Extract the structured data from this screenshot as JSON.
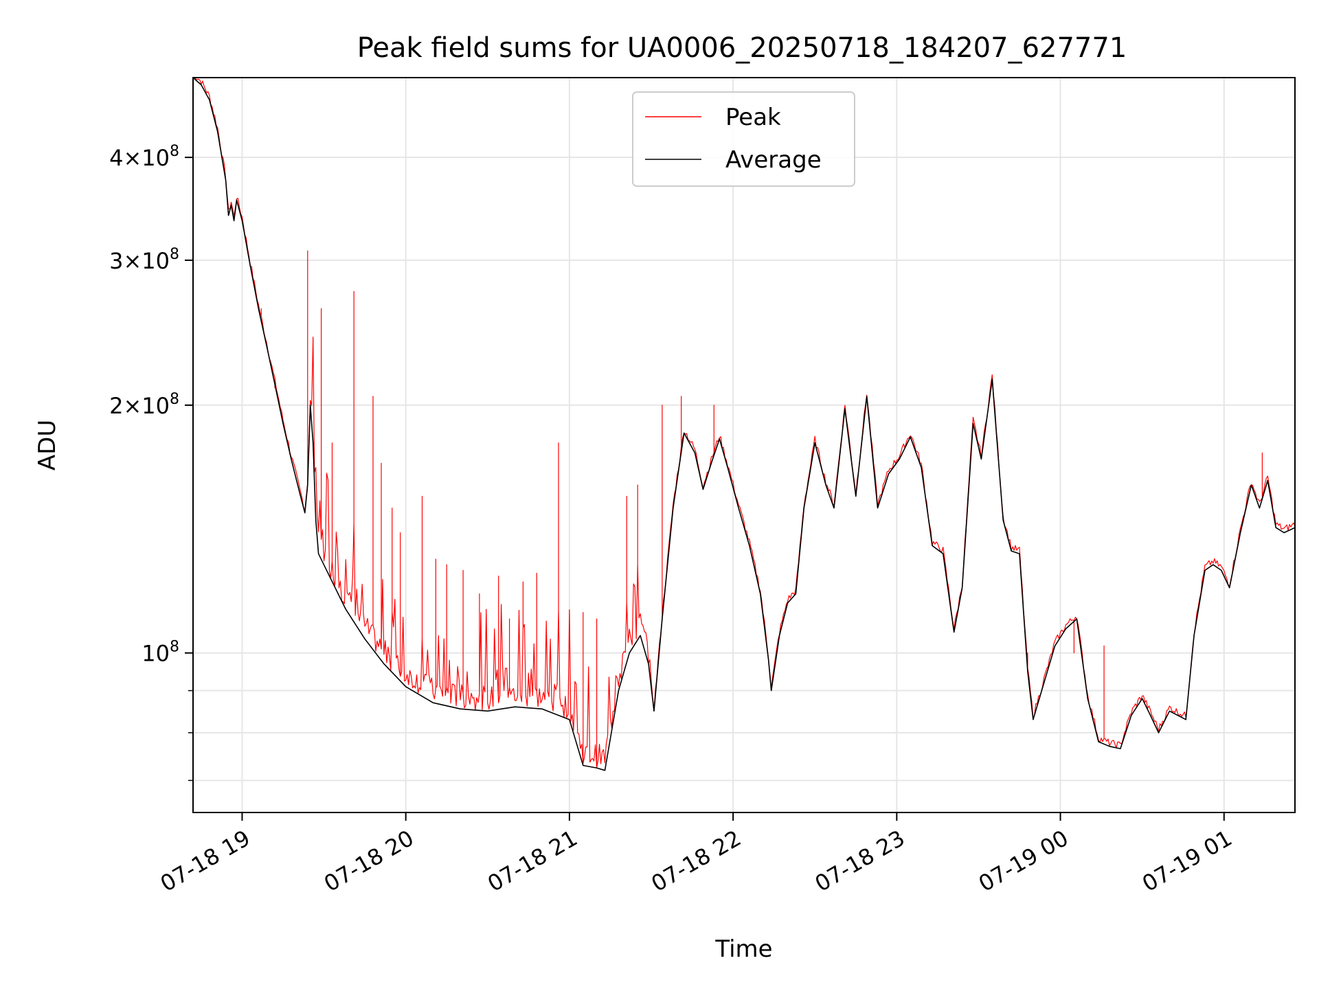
{
  "chart_data": {
    "type": "line",
    "title": "Peak field sums for UA0006_20250718_184207_627771",
    "xlabel": "Time",
    "ylabel": "ADU",
    "y_scale": "log",
    "grid": true,
    "legend_position": "top-center",
    "xlim": [
      "2025-07-18 18:42",
      "2025-07-19 01:26"
    ],
    "ylim": [
      64000000,
      500000000
    ],
    "x_ticks": [
      {
        "value": "2025-07-18 19:00",
        "label": "07-18 19"
      },
      {
        "value": "2025-07-18 20:00",
        "label": "07-18 20"
      },
      {
        "value": "2025-07-18 21:00",
        "label": "07-18 21"
      },
      {
        "value": "2025-07-18 22:00",
        "label": "07-18 22"
      },
      {
        "value": "2025-07-18 23:00",
        "label": "07-18 23"
      },
      {
        "value": "2025-07-19 00:00",
        "label": "07-19 00"
      },
      {
        "value": "2025-07-19 01:00",
        "label": "07-19 01"
      }
    ],
    "y_ticks": [
      {
        "value": 100000000,
        "mantissa": "",
        "exponent": "8",
        "label": "10^8"
      },
      {
        "value": 200000000,
        "mantissa": "2",
        "exponent": "8",
        "label": "2×10^8"
      },
      {
        "value": 300000000,
        "mantissa": "3",
        "exponent": "8",
        "label": "3×10^8"
      },
      {
        "value": 400000000,
        "mantissa": "4",
        "exponent": "8",
        "label": "4×10^8"
      }
    ],
    "y_minor_ticks": [
      70000000,
      80000000,
      90000000
    ],
    "series": [
      {
        "name": "Peak",
        "color": "#ff0000",
        "role": "peak"
      },
      {
        "name": "Average",
        "color": "#000000",
        "role": "average"
      }
    ],
    "average_points": [
      [
        "2025-07-18 18:42",
        500000000
      ],
      [
        "2025-07-18 18:45",
        490000000
      ],
      [
        "2025-07-18 18:48",
        470000000
      ],
      [
        "2025-07-18 18:51",
        430000000
      ],
      [
        "2025-07-18 18:54",
        375000000
      ],
      [
        "2025-07-18 18:55",
        340000000
      ],
      [
        "2025-07-18 18:56",
        350000000
      ],
      [
        "2025-07-18 18:57",
        335000000
      ],
      [
        "2025-07-18 18:58",
        355000000
      ],
      [
        "2025-07-18 19:00",
        335000000
      ],
      [
        "2025-07-18 19:03",
        295000000
      ],
      [
        "2025-07-18 19:06",
        262000000
      ],
      [
        "2025-07-18 19:09",
        236000000
      ],
      [
        "2025-07-18 19:12",
        212000000
      ],
      [
        "2025-07-18 19:15",
        190000000
      ],
      [
        "2025-07-18 19:18",
        172000000
      ],
      [
        "2025-07-18 19:21",
        157000000
      ],
      [
        "2025-07-18 19:23",
        148000000
      ],
      [
        "2025-07-18 19:24",
        160000000
      ],
      [
        "2025-07-18 19:25",
        200000000
      ],
      [
        "2025-07-18 19:26",
        180000000
      ],
      [
        "2025-07-18 19:27",
        145000000
      ],
      [
        "2025-07-18 19:28",
        132000000
      ],
      [
        "2025-07-18 19:32",
        124000000
      ],
      [
        "2025-07-18 19:38",
        113000000
      ],
      [
        "2025-07-18 19:45",
        104000000
      ],
      [
        "2025-07-18 19:52",
        97000000
      ],
      [
        "2025-07-18 20:00",
        91000000
      ],
      [
        "2025-07-18 20:10",
        87000000
      ],
      [
        "2025-07-18 20:20",
        85500000
      ],
      [
        "2025-07-18 20:30",
        85000000
      ],
      [
        "2025-07-18 20:40",
        86000000
      ],
      [
        "2025-07-18 20:50",
        85500000
      ],
      [
        "2025-07-18 21:00",
        83000000
      ],
      [
        "2025-07-18 21:05",
        73000000
      ],
      [
        "2025-07-18 21:10",
        72500000
      ],
      [
        "2025-07-18 21:13",
        72000000
      ],
      [
        "2025-07-18 21:18",
        90000000
      ],
      [
        "2025-07-18 21:22",
        100000000
      ],
      [
        "2025-07-18 21:26",
        105000000
      ],
      [
        "2025-07-18 21:29",
        97000000
      ],
      [
        "2025-07-18 21:31",
        85000000
      ],
      [
        "2025-07-18 21:34",
        110000000
      ],
      [
        "2025-07-18 21:38",
        150000000
      ],
      [
        "2025-07-18 21:42",
        185000000
      ],
      [
        "2025-07-18 21:46",
        175000000
      ],
      [
        "2025-07-18 21:49",
        158000000
      ],
      [
        "2025-07-18 21:52",
        170000000
      ],
      [
        "2025-07-18 21:55",
        182000000
      ],
      [
        "2025-07-18 21:58",
        168000000
      ],
      [
        "2025-07-18 22:02",
        150000000
      ],
      [
        "2025-07-18 22:06",
        135000000
      ],
      [
        "2025-07-18 22:10",
        118000000
      ],
      [
        "2025-07-18 22:13",
        98000000
      ],
      [
        "2025-07-18 22:14",
        90000000
      ],
      [
        "2025-07-18 22:17",
        105000000
      ],
      [
        "2025-07-18 22:20",
        115000000
      ],
      [
        "2025-07-18 22:23",
        118000000
      ],
      [
        "2025-07-18 22:26",
        150000000
      ],
      [
        "2025-07-18 22:30",
        180000000
      ],
      [
        "2025-07-18 22:34",
        160000000
      ],
      [
        "2025-07-18 22:37",
        150000000
      ],
      [
        "2025-07-18 22:41",
        198000000
      ],
      [
        "2025-07-18 22:45",
        155000000
      ],
      [
        "2025-07-18 22:49",
        205000000
      ],
      [
        "2025-07-18 22:53",
        150000000
      ],
      [
        "2025-07-18 22:57",
        165000000
      ],
      [
        "2025-07-18 23:01",
        172000000
      ],
      [
        "2025-07-18 23:05",
        183000000
      ],
      [
        "2025-07-18 23:09",
        168000000
      ],
      [
        "2025-07-18 23:13",
        135000000
      ],
      [
        "2025-07-18 23:17",
        132000000
      ],
      [
        "2025-07-18 23:20",
        112000000
      ],
      [
        "2025-07-18 23:21",
        106000000
      ],
      [
        "2025-07-18 23:24",
        120000000
      ],
      [
        "2025-07-18 23:28",
        190000000
      ],
      [
        "2025-07-18 23:31",
        172000000
      ],
      [
        "2025-07-18 23:35",
        215000000
      ],
      [
        "2025-07-18 23:39",
        145000000
      ],
      [
        "2025-07-18 23:42",
        133000000
      ],
      [
        "2025-07-18 23:45",
        132000000
      ],
      [
        "2025-07-18 23:48",
        95000000
      ],
      [
        "2025-07-18 23:50",
        83000000
      ],
      [
        "2025-07-18 23:54",
        92000000
      ],
      [
        "2025-07-18 23:58",
        102000000
      ],
      [
        "2025-07-19 00:02",
        107000000
      ],
      [
        "2025-07-19 00:06",
        110000000
      ],
      [
        "2025-07-19 00:10",
        88000000
      ],
      [
        "2025-07-19 00:14",
        78000000
      ],
      [
        "2025-07-19 00:18",
        77000000
      ],
      [
        "2025-07-19 00:22",
        76500000
      ],
      [
        "2025-07-19 00:26",
        84000000
      ],
      [
        "2025-07-19 00:30",
        88000000
      ],
      [
        "2025-07-19 00:33",
        84000000
      ],
      [
        "2025-07-19 00:36",
        80000000
      ],
      [
        "2025-07-19 00:40",
        85000000
      ],
      [
        "2025-07-19 00:43",
        84000000
      ],
      [
        "2025-07-19 00:46",
        83000000
      ],
      [
        "2025-07-19 00:49",
        105000000
      ],
      [
        "2025-07-19 00:53",
        126000000
      ],
      [
        "2025-07-19 00:56",
        128000000
      ],
      [
        "2025-07-19 00:59",
        126000000
      ],
      [
        "2025-07-19 01:02",
        120000000
      ],
      [
        "2025-07-19 01:06",
        140000000
      ],
      [
        "2025-07-19 01:10",
        160000000
      ],
      [
        "2025-07-19 01:13",
        150000000
      ],
      [
        "2025-07-19 01:16",
        162000000
      ],
      [
        "2025-07-19 01:19",
        142000000
      ],
      [
        "2025-07-19 01:22",
        140000000
      ],
      [
        "2025-07-19 01:26",
        142000000
      ]
    ],
    "peak_spikes": [
      [
        "2025-07-18 19:07",
        262000000
      ],
      [
        "2025-07-18 19:12",
        210000000
      ],
      [
        "2025-07-18 19:24",
        308000000
      ],
      [
        "2025-07-18 19:29",
        262000000
      ],
      [
        "2025-07-18 19:33",
        180000000
      ],
      [
        "2025-07-18 19:41",
        275000000
      ],
      [
        "2025-07-18 19:48",
        205000000
      ],
      [
        "2025-07-18 19:51",
        170000000
      ],
      [
        "2025-07-18 19:55",
        150000000
      ],
      [
        "2025-07-18 19:58",
        140000000
      ],
      [
        "2025-07-18 20:06",
        155000000
      ],
      [
        "2025-07-18 20:11",
        130000000
      ],
      [
        "2025-07-18 20:15",
        128000000
      ],
      [
        "2025-07-18 20:21",
        126000000
      ],
      [
        "2025-07-18 20:27",
        118000000
      ],
      [
        "2025-07-18 20:34",
        124000000
      ],
      [
        "2025-07-18 20:38",
        110000000
      ],
      [
        "2025-07-18 20:43",
        122000000
      ],
      [
        "2025-07-18 20:48",
        125000000
      ],
      [
        "2025-07-18 20:56",
        180000000
      ],
      [
        "2025-07-18 21:05",
        112000000
      ],
      [
        "2025-07-18 21:10",
        110000000
      ],
      [
        "2025-07-18 21:21",
        155000000
      ],
      [
        "2025-07-18 21:25",
        160000000
      ],
      [
        "2025-07-18 21:34",
        200000000
      ],
      [
        "2025-07-18 21:41",
        205000000
      ],
      [
        "2025-07-18 21:53",
        200000000
      ],
      [
        "2025-07-18 23:48",
        100000000
      ],
      [
        "2025-07-19 00:05",
        100000000
      ],
      [
        "2025-07-19 00:16",
        102000000
      ],
      [
        "2025-07-19 01:14",
        175000000
      ]
    ]
  }
}
